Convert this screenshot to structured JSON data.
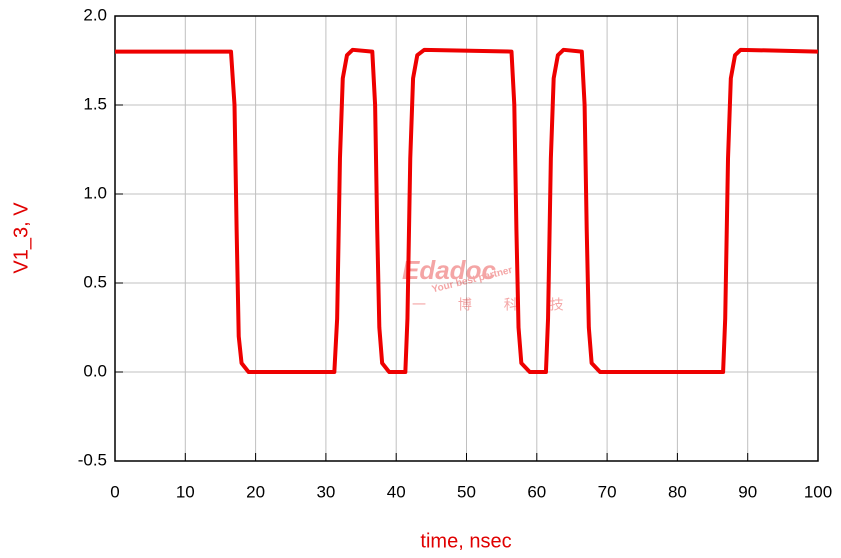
{
  "chart_data": {
    "type": "line",
    "xlabel": "time, nsec",
    "ylabel": "V1_3, V",
    "xlim": [
      0,
      100
    ],
    "xticks": [
      0,
      10,
      20,
      30,
      40,
      50,
      60,
      70,
      80,
      90,
      100
    ],
    "ylim": [
      -0.5,
      2.0
    ],
    "yticks": [
      -0.5,
      {
        "value": 0,
        "label": "0.0"
      },
      0.5,
      {
        "value": 1,
        "label": "1.0"
      },
      1.5,
      {
        "value": 2,
        "label": "2.0"
      }
    ],
    "grid": true,
    "watermark": {
      "brand": "Edadoc",
      "tagline": "Your best partner",
      "chinese": "一 博 科 技"
    },
    "series": [
      {
        "name": "V1_3",
        "color": "#ee0000",
        "x": [
          0,
          16.5,
          17,
          17.3,
          17.6,
          18,
          19,
          31.2,
          31.6,
          32,
          32.4,
          33,
          33.8,
          36.6,
          37,
          37.3,
          37.6,
          38,
          39,
          41.3,
          41.6,
          42,
          42.4,
          43,
          44,
          56.4,
          56.8,
          57.1,
          57.4,
          57.8,
          59,
          61.3,
          61.6,
          62,
          62.4,
          63,
          63.8,
          66.4,
          66.8,
          67.1,
          67.4,
          67.8,
          69,
          86.5,
          86.8,
          87.2,
          87.6,
          88.2,
          89,
          100
        ],
        "values": [
          1.8,
          1.8,
          1.5,
          0.8,
          0.2,
          0.05,
          0,
          0,
          0.3,
          1.2,
          1.65,
          1.78,
          1.81,
          1.8,
          1.5,
          0.8,
          0.25,
          0.05,
          0,
          0,
          0.3,
          1.2,
          1.65,
          1.78,
          1.81,
          1.8,
          1.5,
          0.8,
          0.25,
          0.05,
          0,
          0,
          0.3,
          1.2,
          1.65,
          1.78,
          1.81,
          1.8,
          1.5,
          0.8,
          0.25,
          0.05,
          0,
          0,
          0.3,
          1.2,
          1.65,
          1.78,
          1.81,
          1.8
        ]
      }
    ]
  }
}
